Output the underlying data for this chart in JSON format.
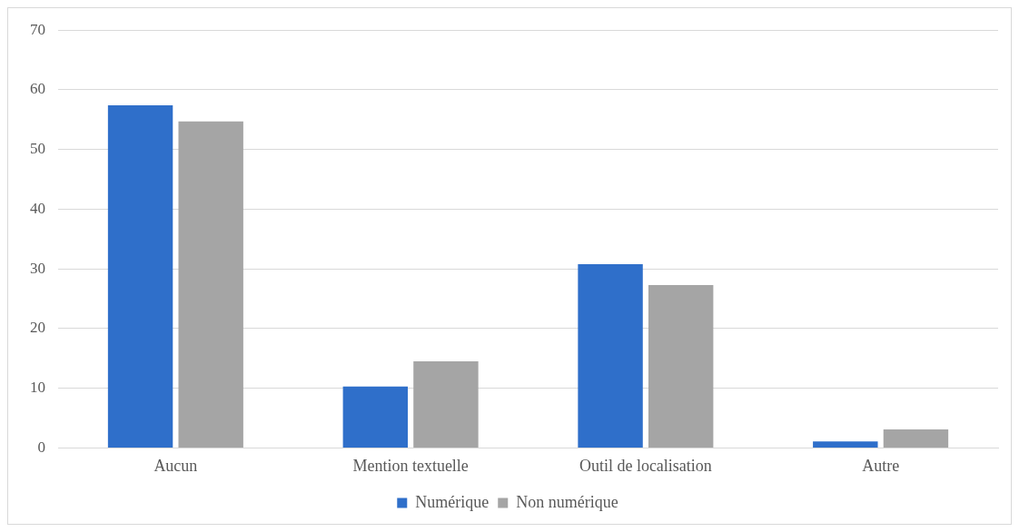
{
  "chart_data": {
    "type": "bar",
    "categories": [
      "Aucun",
      "Mention textuelle",
      "Outil de localisation",
      "Autre"
    ],
    "series": [
      {
        "name": "Numérique",
        "color": "#2f6fca",
        "values": [
          57.4,
          10.3,
          30.8,
          1.1
        ]
      },
      {
        "name": "Non numérique",
        "color": "#a5a5a5",
        "values": [
          54.7,
          14.5,
          27.3,
          3.1
        ]
      }
    ],
    "ylim": [
      0,
      70
    ],
    "yticks": [
      0,
      10,
      20,
      30,
      40,
      50,
      60,
      70
    ],
    "grid": "y",
    "legend": "bottom"
  }
}
